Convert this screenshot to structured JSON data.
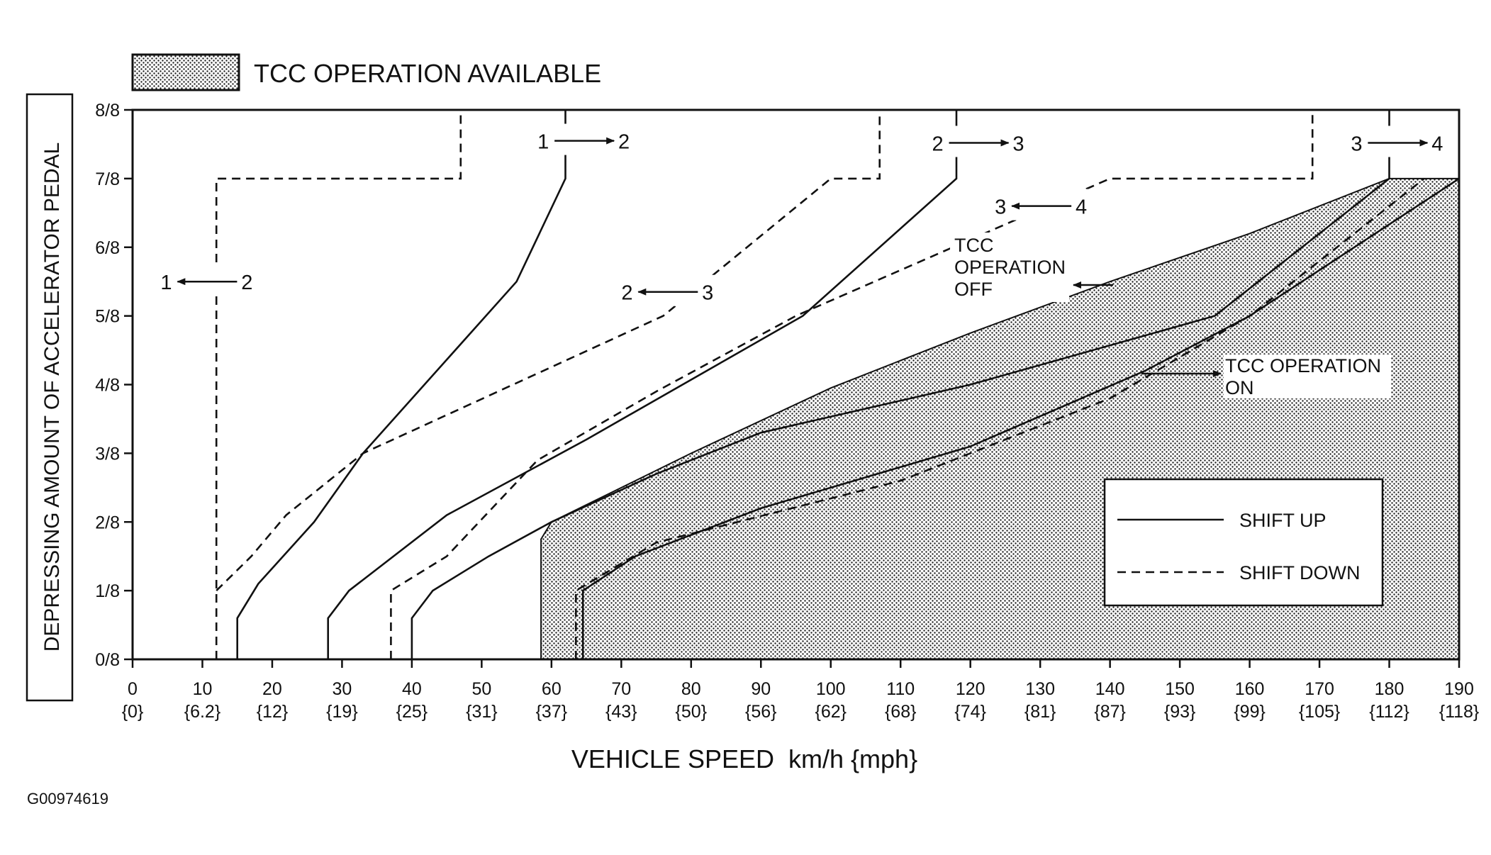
{
  "chart_data": {
    "type": "line",
    "legend": {
      "tcc_available_label": "TCC OPERATION AVAILABLE",
      "shift_up_label": "SHIFT UP",
      "shift_down_label": "SHIFT DOWN",
      "placement": "right"
    },
    "xlabel": "VEHICLE SPEED  km/h {mph}",
    "ylabel": "DEPRESSING AMOUNT OF ACCELERATOR PEDAL",
    "xlim": [
      0,
      190
    ],
    "ylim": [
      0,
      8
    ],
    "x_ticks": [
      {
        "v": 0,
        "kmh": "0",
        "mph": "{0}"
      },
      {
        "v": 10,
        "kmh": "10",
        "mph": "{6.2}"
      },
      {
        "v": 20,
        "kmh": "20",
        "mph": "{12}"
      },
      {
        "v": 30,
        "kmh": "30",
        "mph": "{19}"
      },
      {
        "v": 40,
        "kmh": "40",
        "mph": "{25}"
      },
      {
        "v": 50,
        "kmh": "50",
        "mph": "{31}"
      },
      {
        "v": 60,
        "kmh": "60",
        "mph": "{37}"
      },
      {
        "v": 70,
        "kmh": "70",
        "mph": "{43}"
      },
      {
        "v": 80,
        "kmh": "80",
        "mph": "{50}"
      },
      {
        "v": 90,
        "kmh": "90",
        "mph": "{56}"
      },
      {
        "v": 100,
        "kmh": "100",
        "mph": "{62}"
      },
      {
        "v": 110,
        "kmh": "110",
        "mph": "{68}"
      },
      {
        "v": 120,
        "kmh": "120",
        "mph": "{74}"
      },
      {
        "v": 130,
        "kmh": "130",
        "mph": "{81}"
      },
      {
        "v": 140,
        "kmh": "140",
        "mph": "{87}"
      },
      {
        "v": 150,
        "kmh": "150",
        "mph": "{93}"
      },
      {
        "v": 160,
        "kmh": "160",
        "mph": "{99}"
      },
      {
        "v": 170,
        "kmh": "170",
        "mph": "{105}"
      },
      {
        "v": 180,
        "kmh": "180",
        "mph": "{112}"
      },
      {
        "v": 190,
        "kmh": "190",
        "mph": "{118}"
      }
    ],
    "y_ticks": [
      {
        "v": 0,
        "label": "0/8"
      },
      {
        "v": 1,
        "label": "1/8"
      },
      {
        "v": 2,
        "label": "2/8"
      },
      {
        "v": 3,
        "label": "3/8"
      },
      {
        "v": 4,
        "label": "4/8"
      },
      {
        "v": 5,
        "label": "5/8"
      },
      {
        "v": 6,
        "label": "6/8"
      },
      {
        "v": 7,
        "label": "7/8"
      },
      {
        "v": 8,
        "label": "8/8"
      }
    ],
    "tcc_region": [
      [
        58.5,
        0
      ],
      [
        58.5,
        1.75
      ],
      [
        60,
        2
      ],
      [
        80,
        3
      ],
      [
        100,
        3.95
      ],
      [
        120,
        4.75
      ],
      [
        140,
        5.5
      ],
      [
        160,
        6.2
      ],
      [
        180,
        7
      ],
      [
        190,
        7
      ],
      [
        190,
        0
      ]
    ],
    "series": [
      {
        "style": "up",
        "points": [
          [
            15,
            0
          ],
          [
            15,
            0.6
          ],
          [
            18,
            1.1
          ],
          [
            26,
            2
          ],
          [
            33,
            3
          ],
          [
            55,
            5.5
          ],
          [
            62,
            7
          ],
          [
            62,
            8
          ]
        ]
      },
      {
        "style": "down",
        "points": [
          [
            12,
            0
          ],
          [
            12,
            7
          ],
          [
            47,
            7
          ],
          [
            47,
            8
          ]
        ]
      },
      {
        "style": "up",
        "points": [
          [
            28,
            0
          ],
          [
            28,
            0.6
          ],
          [
            31,
            1
          ],
          [
            45,
            2.1
          ],
          [
            65,
            3.2
          ],
          [
            96,
            5
          ],
          [
            118,
            7
          ],
          [
            118,
            8
          ]
        ]
      },
      {
        "style": "down",
        "points": [
          [
            12,
            1
          ],
          [
            17,
            1.5
          ],
          [
            22,
            2.1
          ],
          [
            33,
            3
          ],
          [
            76,
            5
          ],
          [
            100,
            7
          ],
          [
            107,
            7
          ],
          [
            107,
            8
          ]
        ]
      },
      {
        "style": "up",
        "points": [
          [
            40,
            0
          ],
          [
            40,
            0.6
          ],
          [
            43,
            1
          ],
          [
            51,
            1.5
          ],
          [
            60,
            2
          ],
          [
            75,
            2.7
          ],
          [
            90,
            3.3
          ],
          [
            120,
            4
          ],
          [
            155,
            5
          ],
          [
            180,
            7
          ],
          [
            180,
            8
          ]
        ]
      },
      {
        "style": "down",
        "points": [
          [
            37,
            0
          ],
          [
            37,
            1
          ],
          [
            45,
            1.5
          ],
          [
            58,
            2.9
          ],
          [
            75,
            3.9
          ],
          [
            95,
            5
          ],
          [
            140,
            7
          ],
          [
            169,
            7
          ],
          [
            169,
            8
          ]
        ]
      },
      {
        "style": "up",
        "points": [
          [
            64.5,
            0
          ],
          [
            64.5,
            1
          ],
          [
            72,
            1.5
          ],
          [
            90,
            2.2
          ],
          [
            120,
            3.1
          ],
          [
            145,
            4.2
          ],
          [
            160,
            5
          ],
          [
            190,
            7
          ]
        ]
      },
      {
        "style": "down",
        "points": [
          [
            63.5,
            0
          ],
          [
            63.5,
            1
          ],
          [
            75,
            1.7
          ],
          [
            110,
            2.6
          ],
          [
            140,
            3.8
          ],
          [
            160,
            5
          ],
          [
            185,
            7
          ]
        ]
      }
    ],
    "annotations": [
      {
        "from": "1",
        "to": "2",
        "direction": "right",
        "x": 58,
        "y": 7.55
      },
      {
        "from": "2",
        "to": "3",
        "direction": "right",
        "x": 114.5,
        "y": 7.52
      },
      {
        "from": "3",
        "to": "4",
        "direction": "right",
        "x": 174.5,
        "y": 7.52
      },
      {
        "from": "1",
        "to": "2",
        "direction": "left",
        "x": 4,
        "y": 5.5
      },
      {
        "from": "2",
        "to": "3",
        "direction": "left",
        "x": 70,
        "y": 5.35
      },
      {
        "from": "3",
        "to": "4",
        "direction": "left",
        "x": 123.5,
        "y": 6.6
      }
    ],
    "tcc_off_label": [
      "TCC",
      "OPERATION",
      "OFF"
    ],
    "tcc_on_label": [
      "TCC OPERATION",
      "ON"
    ]
  },
  "figure_code": "G00974619"
}
